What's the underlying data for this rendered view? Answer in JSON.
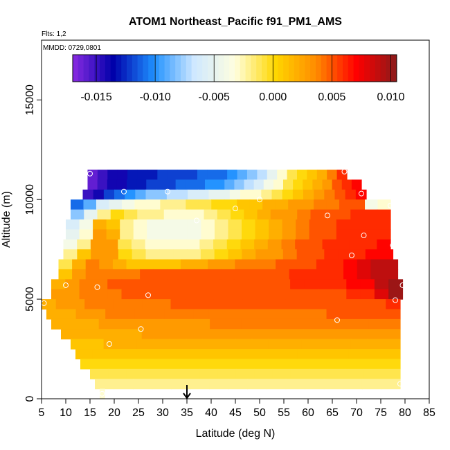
{
  "chart_data": {
    "type": "heatmap",
    "title": "ATOM1 Northeast_Pacific f91_PM1_AMS",
    "annotations": [
      "Flts: 1,2",
      "MMDD: 0729,0801"
    ],
    "xlabel": "Latitude (deg N)",
    "ylabel": "Altitude (m)",
    "xlim": [
      5,
      85
    ],
    "ylim": [
      0,
      18000
    ],
    "xticks": [
      5,
      10,
      15,
      20,
      25,
      30,
      35,
      40,
      45,
      50,
      55,
      60,
      65,
      70,
      75,
      80,
      85
    ],
    "yticks": [
      0,
      5000,
      10000,
      15000
    ],
    "colorbar": {
      "range": [
        -0.017,
        0.0105
      ],
      "ticks": [
        -0.015,
        -0.01,
        -0.005,
        0.0,
        0.005,
        0.01
      ],
      "tick_labels": [
        "-0.015",
        "-0.010",
        "-0.005",
        "0.000",
        "0.005",
        "0.010"
      ],
      "colors": [
        "#8a2be2",
        "#0000aa",
        "#1e90ff",
        "#cfe8ff",
        "#ffffe0",
        "#ffd700",
        "#ff8c00",
        "#ff0000",
        "#8b1a1a"
      ]
    },
    "marker": {
      "x": 35,
      "y": 0,
      "symbol": "down-arrow"
    },
    "bands": [
      {
        "ybot": 11000,
        "ytop": 11500,
        "xmin": 14.5,
        "xmax": 68,
        "values": [
          -0.016,
          -0.015,
          -0.014,
          -0.014,
          -0.013,
          -0.013,
          -0.013,
          -0.012,
          -0.012,
          -0.012,
          -0.012,
          -0.011,
          -0.011,
          -0.011,
          -0.01,
          -0.009,
          -0.008,
          -0.007,
          -0.005,
          -0.003,
          -0.001,
          0.0,
          0.001,
          0.002,
          0.004,
          0.006
        ]
      },
      {
        "ybot": 10500,
        "ytop": 11000,
        "xmin": 14.5,
        "xmax": 71,
        "values": [
          -0.016,
          -0.015,
          -0.014,
          -0.014,
          -0.013,
          -0.013,
          -0.012,
          -0.012,
          -0.012,
          -0.011,
          -0.011,
          -0.011,
          -0.01,
          -0.01,
          -0.009,
          -0.008,
          -0.007,
          -0.006,
          -0.004,
          -0.003,
          -0.001,
          0.0,
          0.001,
          0.002,
          0.003,
          0.005,
          0.006,
          0.007
        ]
      },
      {
        "ybot": 10000,
        "ytop": 10500,
        "xmin": 13.5,
        "xmax": 72,
        "values": [
          -0.015,
          -0.014,
          -0.012,
          -0.011,
          -0.01,
          -0.009,
          -0.008,
          -0.008,
          -0.007,
          -0.007,
          -0.006,
          -0.006,
          -0.005,
          -0.005,
          -0.004,
          -0.003,
          -0.003,
          -0.002,
          -0.001,
          0.0,
          0.001,
          0.002,
          0.003,
          0.004,
          0.005,
          0.006,
          0.007
        ]
      },
      {
        "ybot": 9500,
        "ytop": 10000,
        "xmin": 11,
        "xmax": 77,
        "values": [
          -0.011,
          -0.009,
          -0.006,
          -0.005,
          -0.004,
          -0.003,
          -0.003,
          -0.002,
          -0.002,
          -0.001,
          -0.001,
          0.0,
          0.0,
          0.001,
          0.001,
          0.002,
          0.002,
          0.003,
          0.003,
          0.004,
          0.004,
          0.005,
          0.005,
          -0.004,
          -0.003
        ]
      },
      {
        "ybot": 9000,
        "ytop": 9500,
        "xmin": 11,
        "xmax": 77,
        "values": [
          -0.008,
          -0.005,
          -0.002,
          0.0,
          -0.001,
          -0.002,
          -0.002,
          -0.003,
          -0.003,
          -0.003,
          -0.002,
          -0.001,
          0.0,
          0.001,
          0.002,
          0.003,
          0.003,
          0.004,
          0.005,
          0.005,
          0.005,
          0.006,
          0.006,
          0.006
        ]
      },
      {
        "ybot": 8500,
        "ytop": 9000,
        "xmin": 10,
        "xmax": 77,
        "values": [
          -0.006,
          -0.004,
          0.002,
          0.001,
          -0.002,
          -0.003,
          -0.004,
          -0.004,
          -0.004,
          -0.004,
          -0.003,
          -0.002,
          -0.001,
          0.0,
          0.001,
          0.002,
          0.003,
          0.004,
          0.005,
          0.005,
          0.006,
          0.006,
          0.006,
          0.006
        ]
      },
      {
        "ybot": 8000,
        "ytop": 8500,
        "xmin": 10,
        "xmax": 77,
        "values": [
          -0.005,
          -0.003,
          0.003,
          0.002,
          -0.002,
          -0.003,
          -0.004,
          -0.004,
          -0.004,
          -0.004,
          -0.003,
          -0.002,
          -0.001,
          0.0,
          0.001,
          0.002,
          0.003,
          0.004,
          0.005,
          0.005,
          0.006,
          0.006,
          0.006,
          0.006
        ]
      },
      {
        "ybot": 7500,
        "ytop": 8000,
        "xmin": 9.5,
        "xmax": 77,
        "values": [
          -0.004,
          -0.002,
          0.003,
          0.003,
          -0.001,
          -0.002,
          -0.003,
          -0.003,
          -0.003,
          -0.003,
          -0.002,
          -0.001,
          0.0,
          0.001,
          0.002,
          0.003,
          0.004,
          0.005,
          0.005,
          0.006,
          0.006,
          0.006,
          0.006,
          0.007
        ]
      },
      {
        "ybot": 7000,
        "ytop": 7500,
        "xmin": 9.5,
        "xmax": 77.5,
        "values": [
          -0.002,
          0.001,
          0.003,
          0.003,
          0.0,
          -0.001,
          -0.002,
          -0.002,
          -0.002,
          -0.002,
          -0.001,
          0.0,
          0.001,
          0.002,
          0.003,
          0.003,
          0.004,
          0.005,
          0.005,
          0.006,
          0.006,
          0.006,
          0.007,
          0.007
        ]
      },
      {
        "ybot": 6500,
        "ytop": 7000,
        "xmin": 8.5,
        "xmax": 78.5,
        "values": [
          -0.001,
          0.002,
          0.004,
          0.003,
          0.002,
          0.001,
          0.001,
          0.001,
          0.001,
          0.002,
          0.002,
          0.003,
          0.003,
          0.004,
          0.004,
          0.004,
          0.005,
          0.005,
          0.005,
          0.006,
          0.006,
          0.007,
          0.008,
          0.009,
          0.009
        ]
      },
      {
        "ybot": 6000,
        "ytop": 6500,
        "xmin": 8.5,
        "xmax": 78.5,
        "values": [
          0.001,
          0.003,
          0.004,
          0.004,
          0.004,
          0.004,
          0.005,
          0.005,
          0.005,
          0.005,
          0.005,
          0.005,
          0.005,
          0.005,
          0.005,
          0.005,
          0.005,
          0.006,
          0.006,
          0.006,
          0.006,
          0.007,
          0.008,
          0.009,
          0.009
        ]
      },
      {
        "ybot": 5500,
        "ytop": 6000,
        "xmin": 7,
        "xmax": 79.5,
        "values": [
          0.002,
          0.003,
          0.004,
          0.004,
          0.005,
          0.005,
          0.005,
          0.005,
          0.005,
          0.005,
          0.005,
          0.005,
          0.005,
          0.005,
          0.005,
          0.005,
          0.005,
          0.006,
          0.006,
          0.006,
          0.006,
          0.007,
          0.007,
          0.009,
          0.01
        ]
      },
      {
        "ybot": 5000,
        "ytop": 5500,
        "xmin": 7,
        "xmax": 79.5,
        "values": [
          0.003,
          0.003,
          0.004,
          0.004,
          0.004,
          0.005,
          0.005,
          0.005,
          0.005,
          0.005,
          0.005,
          0.005,
          0.005,
          0.005,
          0.005,
          0.005,
          0.005,
          0.005,
          0.005,
          0.005,
          0.005,
          0.006,
          0.006,
          0.008,
          0.01
        ]
      },
      {
        "ybot": 4500,
        "ytop": 5000,
        "xmin": 5,
        "xmax": 79,
        "values": [
          0.002,
          0.003,
          0.003,
          0.004,
          0.004,
          0.004,
          0.004,
          0.004,
          0.004,
          0.005,
          0.005,
          0.005,
          0.005,
          0.005,
          0.005,
          0.005,
          0.005,
          0.005,
          0.005,
          0.005,
          0.005,
          0.005,
          0.005,
          0.005,
          0.006
        ]
      },
      {
        "ybot": 4000,
        "ytop": 4500,
        "xmin": 6,
        "xmax": 79,
        "values": [
          0.002,
          0.002,
          0.003,
          0.003,
          0.004,
          0.004,
          0.004,
          0.004,
          0.004,
          0.004,
          0.004,
          0.004,
          0.004,
          0.004,
          0.004,
          0.004,
          0.004,
          0.004,
          0.004,
          0.005,
          0.005,
          0.005,
          0.005,
          0.005
        ]
      },
      {
        "ybot": 3500,
        "ytop": 4000,
        "xmin": 7,
        "xmax": 79,
        "values": [
          0.002,
          0.002,
          0.002,
          0.003,
          0.003,
          0.003,
          0.003,
          0.003,
          0.003,
          0.003,
          0.004,
          0.004,
          0.004,
          0.004,
          0.004,
          0.004,
          0.004,
          0.004,
          0.004,
          0.004,
          0.004,
          0.004
        ]
      },
      {
        "ybot": 3000,
        "ytop": 3500,
        "xmin": 9,
        "xmax": 79,
        "values": [
          0.002,
          0.002,
          0.002,
          0.002,
          0.002,
          0.003,
          0.003,
          0.003,
          0.003,
          0.003,
          0.003,
          0.003,
          0.003,
          0.003,
          0.003,
          0.003,
          0.003,
          0.003,
          0.003,
          0.003,
          0.003
        ]
      },
      {
        "ybot": 2500,
        "ytop": 3000,
        "xmin": 11,
        "xmax": 79,
        "values": [
          0.001,
          0.001,
          0.002,
          0.002,
          0.002,
          0.002,
          0.002,
          0.002,
          0.002,
          0.002,
          0.002,
          0.002,
          0.002,
          0.002,
          0.002,
          0.002,
          0.002,
          0.002,
          0.002,
          0.002
        ]
      },
      {
        "ybot": 2000,
        "ytop": 2500,
        "xmin": 12,
        "xmax": 79,
        "values": [
          0.001,
          0.001,
          0.001,
          0.001,
          0.001,
          0.001,
          0.001,
          0.001,
          0.001,
          0.001,
          0.001,
          0.001,
          0.001,
          0.001,
          0.001,
          0.001,
          0.001,
          0.001,
          0.001
        ]
      },
      {
        "ybot": 1500,
        "ytop": 2000,
        "xmin": 13,
        "xmax": 79,
        "values": [
          0.0,
          0.0,
          0.0,
          0.0,
          0.0,
          0.0,
          0.0,
          0.0,
          0.0,
          0.0,
          0.0,
          0.0,
          0.0,
          0.0,
          0.0,
          0.0,
          0.0,
          0.0
        ]
      },
      {
        "ybot": 1000,
        "ytop": 1500,
        "xmin": 15,
        "xmax": 79,
        "values": [
          -0.001,
          -0.001,
          -0.001,
          -0.001,
          -0.001,
          -0.001,
          -0.001,
          -0.001,
          -0.001,
          -0.001,
          -0.001,
          -0.001,
          -0.001,
          -0.001,
          -0.001,
          -0.001,
          -0.001
        ]
      },
      {
        "ybot": 500,
        "ytop": 1000,
        "xmin": 16,
        "xmax": 79,
        "values": [
          -0.002,
          -0.002,
          -0.002,
          -0.002,
          -0.002,
          -0.002,
          -0.002,
          -0.002,
          -0.002,
          -0.002,
          -0.002,
          -0.002,
          -0.002,
          -0.002,
          -0.002,
          -0.002
        ]
      },
      {
        "ybot": 0,
        "ytop": 500,
        "xmin": 17,
        "xmax": 18,
        "values": [
          -0.003
        ]
      }
    ],
    "points": [
      {
        "x": 15,
        "y": 11300
      },
      {
        "x": 22,
        "y": 10400
      },
      {
        "x": 31,
        "y": 10400
      },
      {
        "x": 45,
        "y": 9550
      },
      {
        "x": 50,
        "y": 10000
      },
      {
        "x": 67.5,
        "y": 11400
      },
      {
        "x": 71,
        "y": 10300
      },
      {
        "x": 77,
        "y": 9700
      },
      {
        "x": 37,
        "y": 8950
      },
      {
        "x": 64,
        "y": 9200
      },
      {
        "x": 71.5,
        "y": 8200
      },
      {
        "x": 77.5,
        "y": 7700
      },
      {
        "x": 69,
        "y": 7200
      },
      {
        "x": 10,
        "y": 5700
      },
      {
        "x": 16.5,
        "y": 5600
      },
      {
        "x": 79.5,
        "y": 5700
      },
      {
        "x": 5.5,
        "y": 4800
      },
      {
        "x": 27,
        "y": 5200
      },
      {
        "x": 78,
        "y": 4950
      },
      {
        "x": 66,
        "y": 3950
      },
      {
        "x": 25.5,
        "y": 3500
      },
      {
        "x": 19,
        "y": 2750
      },
      {
        "x": 79,
        "y": 750
      },
      {
        "x": 17.5,
        "y": 250
      }
    ]
  }
}
